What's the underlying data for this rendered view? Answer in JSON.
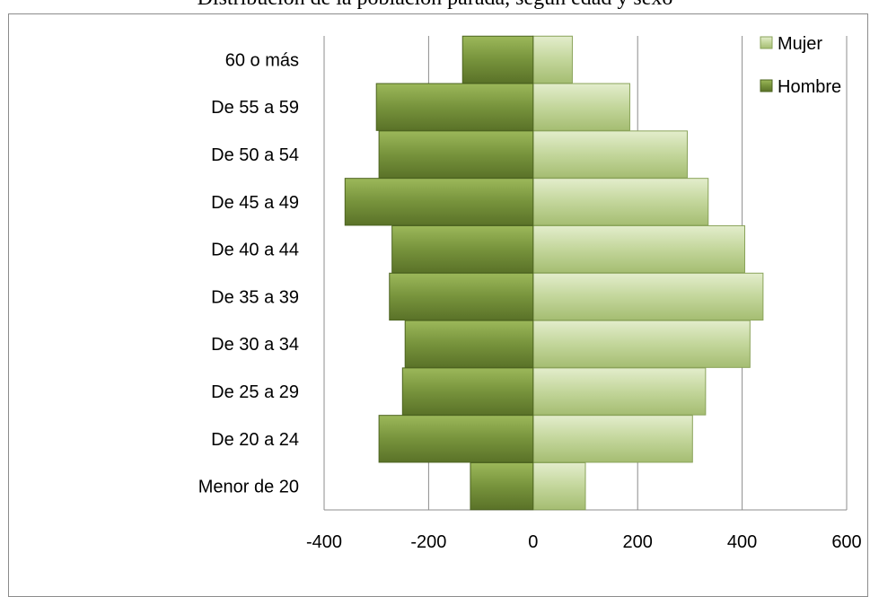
{
  "chart_data": {
    "type": "bar",
    "orientation": "horizontal",
    "title": "Distribución de la población parada, según edad y sexo",
    "categories": [
      "Menor de 20",
      "De 20 a 24",
      "De 25 a 29",
      "De 30 a 34",
      "De 35 a 39",
      "De 40 a 44",
      "De 45 a 49",
      "De 50 a 54",
      "De 55 a 59",
      "60 o más"
    ],
    "series": [
      {
        "name": "Mujer",
        "values": [
          100,
          305,
          330,
          415,
          440,
          405,
          335,
          295,
          185,
          75
        ],
        "color": "#c3d69b"
      },
      {
        "name": "Hombre",
        "values": [
          -120,
          -295,
          -250,
          -245,
          -275,
          -270,
          -360,
          -295,
          -300,
          -135
        ],
        "color": "#77933c"
      }
    ],
    "xlim": [
      -400,
      600
    ],
    "xticks": [
      "-400",
      "-200",
      "0",
      "200",
      "400",
      "600"
    ],
    "grid": true,
    "legend_position": "top-right"
  }
}
